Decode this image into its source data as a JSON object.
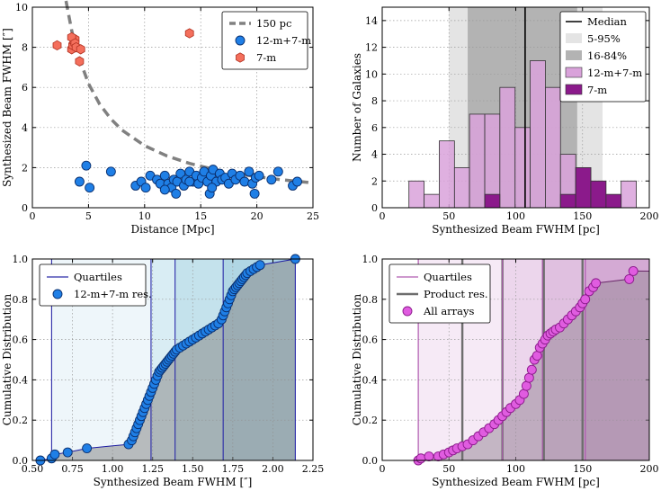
{
  "chart_data": [
    {
      "type": "scatter",
      "id": "p1",
      "xlabel": "Distance [Mpc]",
      "ylabel": "Synthesized Beam FWHM [″]",
      "xlim": [
        0,
        25
      ],
      "ylim": [
        0,
        10
      ],
      "xticks": [
        0,
        5,
        10,
        15,
        20,
        25
      ],
      "yticks": [
        0,
        2,
        4,
        6,
        8,
        10
      ],
      "legend": [
        "150 pc",
        "12-m+7-m",
        "7-m"
      ],
      "curve": {
        "name": "150 pc",
        "x": [
          3.0,
          3.5,
          4,
          5,
          6,
          7,
          8,
          10,
          12,
          14,
          16,
          18,
          20,
          22,
          25
        ]
      },
      "series": [
        {
          "name": "12-m+7-m",
          "color": "#1f7fe6",
          "x": [
            4.2,
            4.8,
            5.1,
            7.0,
            9.2,
            9.7,
            10.1,
            10.5,
            11.1,
            11.4,
            11.8,
            12.1,
            12.4,
            12.6,
            12.9,
            13.2,
            13.5,
            13.7,
            14.0,
            14.3,
            14.6,
            14.8,
            15.1,
            15.3,
            15.6,
            15.9,
            16.1,
            16.4,
            16.7,
            16.9,
            17.2,
            17.5,
            17.8,
            18.1,
            18.5,
            18.9,
            19.3,
            19.6,
            19.9,
            20.2,
            21.3,
            21.9,
            23.2,
            23.6,
            11.8,
            12.8,
            15.8,
            16.0,
            19.8,
            14.0
          ],
          "y": [
            1.3,
            2.1,
            1.0,
            1.8,
            1.1,
            1.3,
            1.0,
            1.6,
            1.4,
            1.2,
            1.6,
            1.2,
            1.0,
            1.4,
            1.3,
            1.7,
            1.1,
            1.4,
            1.8,
            1.3,
            1.6,
            1.2,
            1.5,
            1.8,
            1.3,
            1.6,
            1.9,
            1.3,
            1.7,
            1.4,
            1.5,
            1.2,
            1.7,
            1.4,
            1.6,
            1.3,
            1.8,
            1.2,
            1.5,
            1.6,
            1.4,
            1.8,
            1.1,
            1.3,
            0.9,
            0.7,
            0.7,
            1.0,
            0.7,
            1.3
          ]
        },
        {
          "name": "7-m",
          "color": "#f46f5c",
          "x": [
            2.2,
            3.5,
            3.6,
            3.7,
            3.8,
            3.5,
            3.8,
            3.9,
            4.3,
            4.2,
            14.0
          ],
          "y": [
            8.1,
            7.9,
            8.1,
            8.3,
            8.4,
            8.5,
            8.2,
            8.0,
            7.9,
            7.3,
            8.7
          ]
        }
      ]
    },
    {
      "type": "bar",
      "id": "p2",
      "xlabel": "Synthesized Beam FWHM [pc]",
      "ylabel": "Number of Galaxies",
      "xlim": [
        0,
        200
      ],
      "ylim": [
        0,
        15
      ],
      "xticks": [
        0,
        50,
        100,
        150,
        200
      ],
      "yticks": [
        0,
        2,
        4,
        6,
        8,
        10,
        12,
        14
      ],
      "bin_edges": [
        20,
        31.4,
        42.7,
        54.1,
        65.4,
        76.8,
        88.1,
        99.5,
        110.8,
        122.2,
        133.5,
        144.9,
        156.2,
        167.6,
        178.9,
        190.3
      ],
      "series": [
        {
          "name": "12-m+7-m",
          "color": "#d9a2da",
          "values": [
            2,
            1,
            5,
            3,
            7,
            7,
            9,
            6,
            11,
            9,
            4,
            3,
            0,
            0,
            2
          ]
        },
        {
          "name": "7-m",
          "color": "#8b1a8b",
          "values": [
            0,
            0,
            0,
            0,
            0,
            1,
            0,
            0,
            0,
            0,
            1,
            3,
            2,
            1,
            0
          ]
        }
      ],
      "median": 107,
      "band_5_95": [
        50,
        165
      ],
      "band_16_84": [
        64,
        146
      ],
      "legend": [
        "Median",
        "5-95%",
        "16-84%",
        "12-m+7-m",
        "7-m"
      ]
    },
    {
      "type": "line",
      "id": "p3",
      "xlabel": "Synthesized Beam FWHM [″]",
      "ylabel": "Cumulative Distribution",
      "xlim": [
        0.5,
        2.25
      ],
      "ylim": [
        0,
        1.0
      ],
      "xticks": [
        0.5,
        0.75,
        1.0,
        1.25,
        1.5,
        1.75,
        2.0,
        2.25
      ],
      "yticks": [
        0.0,
        0.2,
        0.4,
        0.6,
        0.8,
        1.0
      ],
      "quartiles": [
        0.62,
        1.24,
        1.39,
        1.69,
        2.14
      ],
      "legend": [
        "Quartiles",
        "12-m+7-m res."
      ],
      "series": [
        {
          "name": "12-m+7-m res.",
          "color": "#1f7fe6",
          "x": [
            0.55,
            0.62,
            0.64,
            0.72,
            0.84,
            1.1,
            1.12,
            1.13,
            1.14,
            1.15,
            1.16,
            1.17,
            1.18,
            1.19,
            1.2,
            1.21,
            1.22,
            1.23,
            1.24,
            1.25,
            1.26,
            1.27,
            1.28,
            1.29,
            1.3,
            1.31,
            1.32,
            1.33,
            1.34,
            1.35,
            1.36,
            1.37,
            1.38,
            1.39,
            1.4,
            1.42,
            1.44,
            1.46,
            1.48,
            1.5,
            1.52,
            1.54,
            1.56,
            1.58,
            1.6,
            1.62,
            1.64,
            1.66,
            1.68,
            1.69,
            1.7,
            1.71,
            1.72,
            1.73,
            1.74,
            1.75,
            1.76,
            1.77,
            1.78,
            1.79,
            1.8,
            1.81,
            1.82,
            1.83,
            1.84,
            1.86,
            1.88,
            1.9,
            1.92,
            2.14
          ],
          "y": [
            0.0,
            0.01,
            0.03,
            0.04,
            0.06,
            0.08,
            0.1,
            0.12,
            0.14,
            0.16,
            0.18,
            0.2,
            0.22,
            0.24,
            0.26,
            0.28,
            0.3,
            0.32,
            0.34,
            0.36,
            0.38,
            0.4,
            0.42,
            0.44,
            0.45,
            0.46,
            0.47,
            0.48,
            0.49,
            0.5,
            0.51,
            0.52,
            0.53,
            0.54,
            0.55,
            0.56,
            0.57,
            0.58,
            0.59,
            0.6,
            0.61,
            0.62,
            0.63,
            0.64,
            0.65,
            0.66,
            0.67,
            0.68,
            0.7,
            0.72,
            0.74,
            0.76,
            0.78,
            0.8,
            0.82,
            0.84,
            0.85,
            0.86,
            0.87,
            0.88,
            0.89,
            0.9,
            0.91,
            0.92,
            0.93,
            0.94,
            0.95,
            0.96,
            0.97,
            1.0
          ]
        }
      ]
    },
    {
      "type": "line",
      "id": "p4",
      "xlabel": "Synthesized Beam FWHM [pc]",
      "ylabel": "Cumulative Distribution",
      "xlim": [
        0,
        200
      ],
      "ylim": [
        0,
        1.0
      ],
      "xticks": [
        0,
        50,
        100,
        150,
        200
      ],
      "yticks": [
        0.0,
        0.2,
        0.4,
        0.6,
        0.8,
        1.0
      ],
      "quartiles": [
        27,
        90,
        120,
        152
      ],
      "product_res": [
        60,
        90,
        121,
        150
      ],
      "legend": [
        "Quartiles",
        "Product res.",
        "All arrays"
      ],
      "series": [
        {
          "name": "All arrays",
          "color": "#e05ce0",
          "x": [
            27,
            29,
            35,
            42,
            46,
            50,
            53,
            56,
            60,
            64,
            68,
            72,
            76,
            80,
            84,
            87,
            90,
            93,
            96,
            100,
            103,
            106,
            108,
            110,
            112,
            114,
            116,
            118,
            120,
            122,
            124,
            126,
            128,
            130,
            133,
            136,
            139,
            142,
            145,
            148,
            150,
            152,
            155,
            158,
            160,
            185,
            188
          ],
          "y": [
            0.0,
            0.01,
            0.02,
            0.02,
            0.03,
            0.04,
            0.05,
            0.06,
            0.07,
            0.08,
            0.1,
            0.12,
            0.14,
            0.16,
            0.18,
            0.2,
            0.22,
            0.24,
            0.26,
            0.28,
            0.3,
            0.33,
            0.37,
            0.41,
            0.45,
            0.5,
            0.52,
            0.56,
            0.58,
            0.6,
            0.62,
            0.63,
            0.64,
            0.65,
            0.66,
            0.68,
            0.7,
            0.72,
            0.74,
            0.76,
            0.78,
            0.8,
            0.84,
            0.86,
            0.88,
            0.9,
            0.94
          ]
        }
      ]
    }
  ]
}
